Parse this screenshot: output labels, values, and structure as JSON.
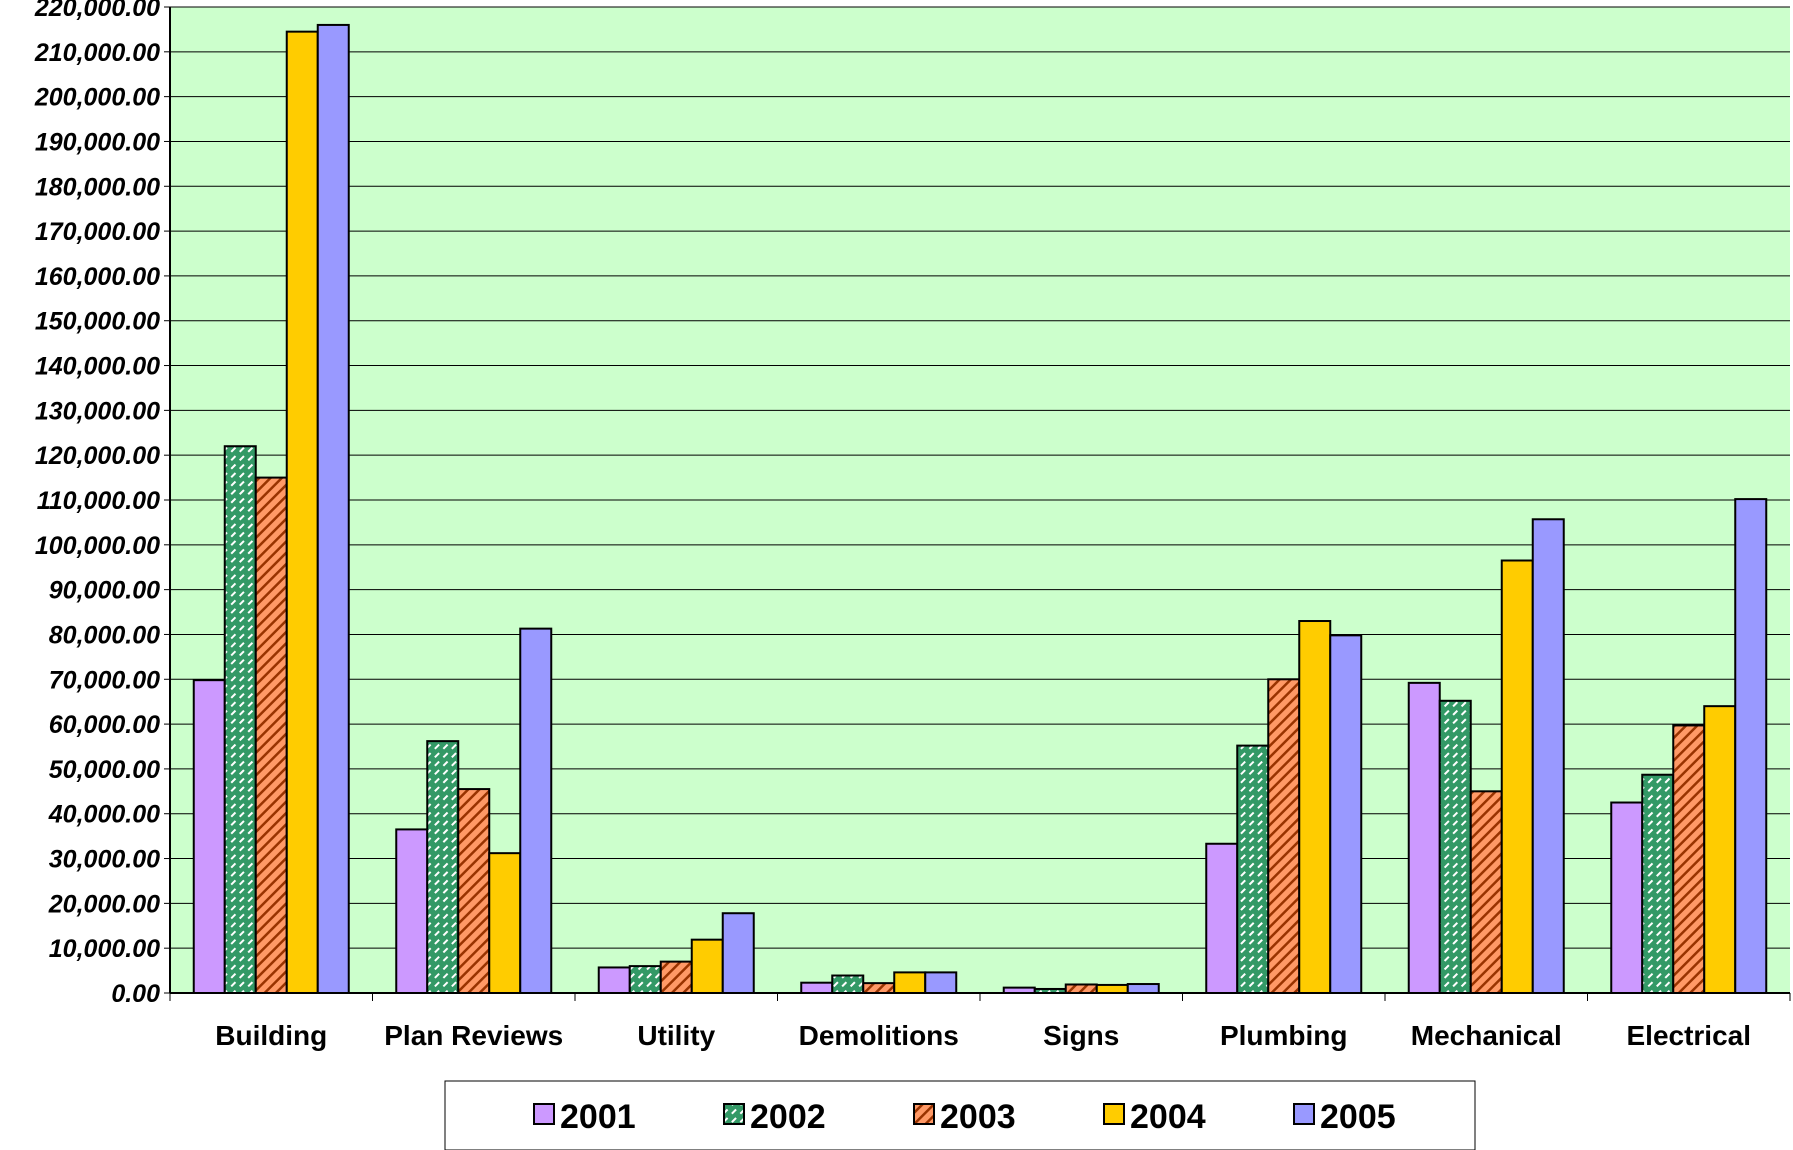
{
  "chart_data": {
    "type": "bar",
    "categories": [
      "Building",
      "Plan Reviews",
      "Utility",
      "Demolitions",
      "Signs",
      "Plumbing",
      "Mechanical",
      "Electrical"
    ],
    "series": [
      {
        "name": "2001",
        "color": "#cc99ff",
        "pattern": "solid",
        "values": [
          69800,
          36500,
          5700,
          2300,
          1200,
          33300,
          69200,
          42500
        ]
      },
      {
        "name": "2002",
        "color": "#339966",
        "pattern": "dashed-hatch",
        "values": [
          122000,
          56200,
          6000,
          3900,
          900,
          55200,
          65200,
          48700
        ]
      },
      {
        "name": "2003",
        "color": "#993300",
        "pattern": "diagonal-stripe",
        "values": [
          115000,
          45500,
          7000,
          2200,
          1900,
          70000,
          45000,
          59700
        ]
      },
      {
        "name": "2004",
        "color": "#ffcc00",
        "pattern": "solid",
        "values": [
          214500,
          31200,
          11900,
          4600,
          1800,
          83000,
          96500,
          64000
        ]
      },
      {
        "name": "2005",
        "color": "#9999ff",
        "pattern": "solid",
        "values": [
          216000,
          81300,
          17800,
          4600,
          2000,
          79800,
          105700,
          110200
        ]
      }
    ],
    "yticks": [
      "0.00",
      "10,000.00",
      "20,000.00",
      "30,000.00",
      "40,000.00",
      "50,000.00",
      "60,000.00",
      "70,000.00",
      "80,000.00",
      "90,000.00",
      "100,000.00",
      "110,000.00",
      "120,000.00",
      "130,000.00",
      "140,000.00",
      "150,000.00",
      "160,000.00",
      "170,000.00",
      "180,000.00",
      "190,000.00",
      "200,000.00",
      "210,000.00",
      "220,000.00"
    ],
    "ylim": [
      0,
      220000
    ],
    "grid": true,
    "legend_position": "bottom",
    "plot_background": "#ccffcc"
  }
}
